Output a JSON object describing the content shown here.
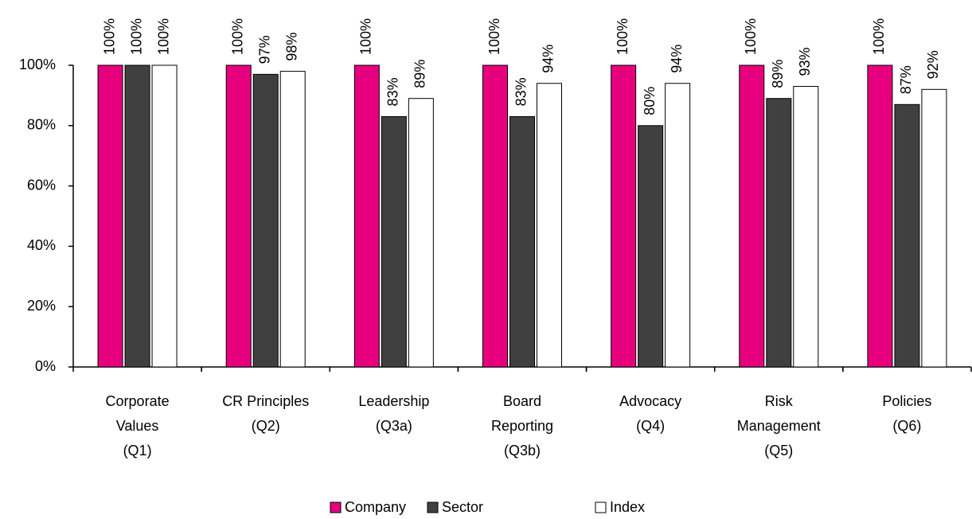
{
  "chart_data": {
    "type": "bar",
    "categories": [
      [
        "Corporate",
        "Values",
        "(Q1)"
      ],
      [
        "CR Principles",
        "(Q2)"
      ],
      [
        "Leadership",
        "(Q3a)"
      ],
      [
        "Board",
        "Reporting",
        "(Q3b)"
      ],
      [
        "Advocacy",
        "(Q4)"
      ],
      [
        "Risk",
        "Management",
        "(Q5)"
      ],
      [
        "Policies",
        "(Q6)"
      ]
    ],
    "series": [
      {
        "name": "Company",
        "color": "#e6007e",
        "values": [
          100,
          100,
          100,
          100,
          100,
          100,
          100
        ],
        "value_labels": [
          "100%",
          "100%",
          "100%",
          "100%",
          "100%",
          "100%",
          "100%"
        ]
      },
      {
        "name": "Sector",
        "color": "#404040",
        "values": [
          100,
          97,
          83,
          83,
          80,
          89,
          87
        ],
        "value_labels": [
          "100%",
          "97%",
          "83%",
          "83%",
          "80%",
          "89%",
          "87%"
        ]
      },
      {
        "name": "Index",
        "color": "#ffffff",
        "values": [
          100,
          98,
          89,
          94,
          94,
          93,
          92
        ],
        "value_labels": [
          "100%",
          "98%",
          "89%",
          "94%",
          "94%",
          "93%",
          "92%"
        ]
      }
    ],
    "ylim": [
      0,
      100
    ],
    "yticks": [
      {
        "value": 0,
        "label": "0%"
      },
      {
        "value": 20,
        "label": "20%"
      },
      {
        "value": 40,
        "label": "40%"
      },
      {
        "value": 60,
        "label": "60%"
      },
      {
        "value": 80,
        "label": "80%"
      },
      {
        "value": 100,
        "label": "100%"
      }
    ],
    "legend": "bottom"
  }
}
